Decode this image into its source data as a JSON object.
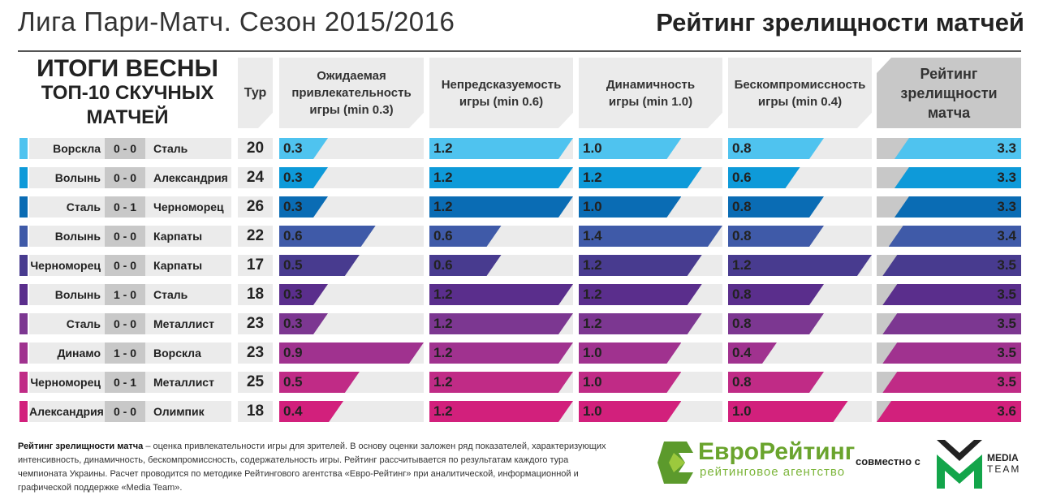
{
  "header": {
    "title_left": "Лига Пари-Матч. Сезон 2015/2016",
    "title_right": "Рейтинг зрелищности матчей"
  },
  "headline": {
    "line1": "ИТОГИ ВЕСНЫ",
    "line2": "ТОП-10 СКУЧНЫХ",
    "line3": "МАТЧЕЙ"
  },
  "columns": {
    "tur": "Тур",
    "c1": "Ожидаемая привлекательность игры (min 0.3)",
    "c2": "Непредсказуемость игры (min 0.6)",
    "c3": "Динамичность игры (min 1.0)",
    "c4": "Бескомпромиссность игры (min 0.4)",
    "rating": "Рейтинг зрелищности матча"
  },
  "chart_data": {
    "type": "table",
    "scale_max": {
      "c1": 0.9,
      "c2": 1.2,
      "c3": 1.4,
      "c4": 1.2
    },
    "rows": [
      {
        "home": "Ворскла",
        "score": "0 - 0",
        "away": "Сталь",
        "tur": "20",
        "c1": "0.3",
        "c2": "1.2",
        "c3": "1.0",
        "c4": "0.8",
        "rating": "3.3",
        "color": "#4fc3ef"
      },
      {
        "home": "Волынь",
        "score": "0 - 0",
        "away": "Александрия",
        "tur": "24",
        "c1": "0.3",
        "c2": "1.2",
        "c3": "1.2",
        "c4": "0.6",
        "rating": "3.3",
        "color": "#0e9ad9"
      },
      {
        "home": "Сталь",
        "score": "0 - 1",
        "away": "Черноморец",
        "tur": "26",
        "c1": "0.3",
        "c2": "1.2",
        "c3": "1.0",
        "c4": "0.8",
        "rating": "3.3",
        "color": "#0a6cb4"
      },
      {
        "home": "Волынь",
        "score": "0 - 0",
        "away": "Карпаты",
        "tur": "22",
        "c1": "0.6",
        "c2": "0.6",
        "c3": "1.4",
        "c4": "0.8",
        "rating": "3.4",
        "color": "#3f5aa8"
      },
      {
        "home": "Черноморец",
        "score": "0 - 0",
        "away": "Карпаты",
        "tur": "17",
        "c1": "0.5",
        "c2": "0.6",
        "c3": "1.2",
        "c4": "1.2",
        "rating": "3.5",
        "color": "#483b8f"
      },
      {
        "home": "Волынь",
        "score": "1 - 0",
        "away": "Сталь",
        "tur": "18",
        "c1": "0.3",
        "c2": "1.2",
        "c3": "1.2",
        "c4": "0.8",
        "rating": "3.5",
        "color": "#5a2e8c"
      },
      {
        "home": "Сталь",
        "score": "0 - 0",
        "away": "Металлист",
        "tur": "23",
        "c1": "0.3",
        "c2": "1.2",
        "c3": "1.2",
        "c4": "0.8",
        "rating": "3.5",
        "color": "#7c3791"
      },
      {
        "home": "Динамо",
        "score": "1 - 0",
        "away": "Ворскла",
        "tur": "23",
        "c1": "0.9",
        "c2": "1.2",
        "c3": "1.0",
        "c4": "0.4",
        "rating": "3.5",
        "color": "#a0328f"
      },
      {
        "home": "Черноморец",
        "score": "0 - 1",
        "away": "Металлист",
        "tur": "25",
        "c1": "0.5",
        "c2": "1.2",
        "c3": "1.0",
        "c4": "0.8",
        "rating": "3.5",
        "color": "#c02b86"
      },
      {
        "home": "Александрия",
        "score": "0 - 0",
        "away": "Олимпик",
        "tur": "18",
        "c1": "0.4",
        "c2": "1.2",
        "c3": "1.0",
        "c4": "1.0",
        "rating": "3.6",
        "color": "#d2207c"
      }
    ]
  },
  "footnote": {
    "bold": "Рейтинг зрелищности матча",
    "text": " – оценка привлекательности игры для зрителей. В основу оценки заложен ряд показателей, характеризующих интенсивность, динамичность, бескомпромиссность, содержательность игры. Рейтинг рассчитывается по результатам каждого тура чемпионата Украины. Расчет проводится по методике Рейтингового агентства «Евро-Рейтинг» при аналитической, информационной и графической поддержке «Media Team»."
  },
  "logos": {
    "euro_name": "ЕвроРейтинг",
    "euro_sub": "рейтинговое агентство",
    "jointly": "совместно с",
    "mt_line1": "MEDIA",
    "mt_line2": "TEAM"
  }
}
